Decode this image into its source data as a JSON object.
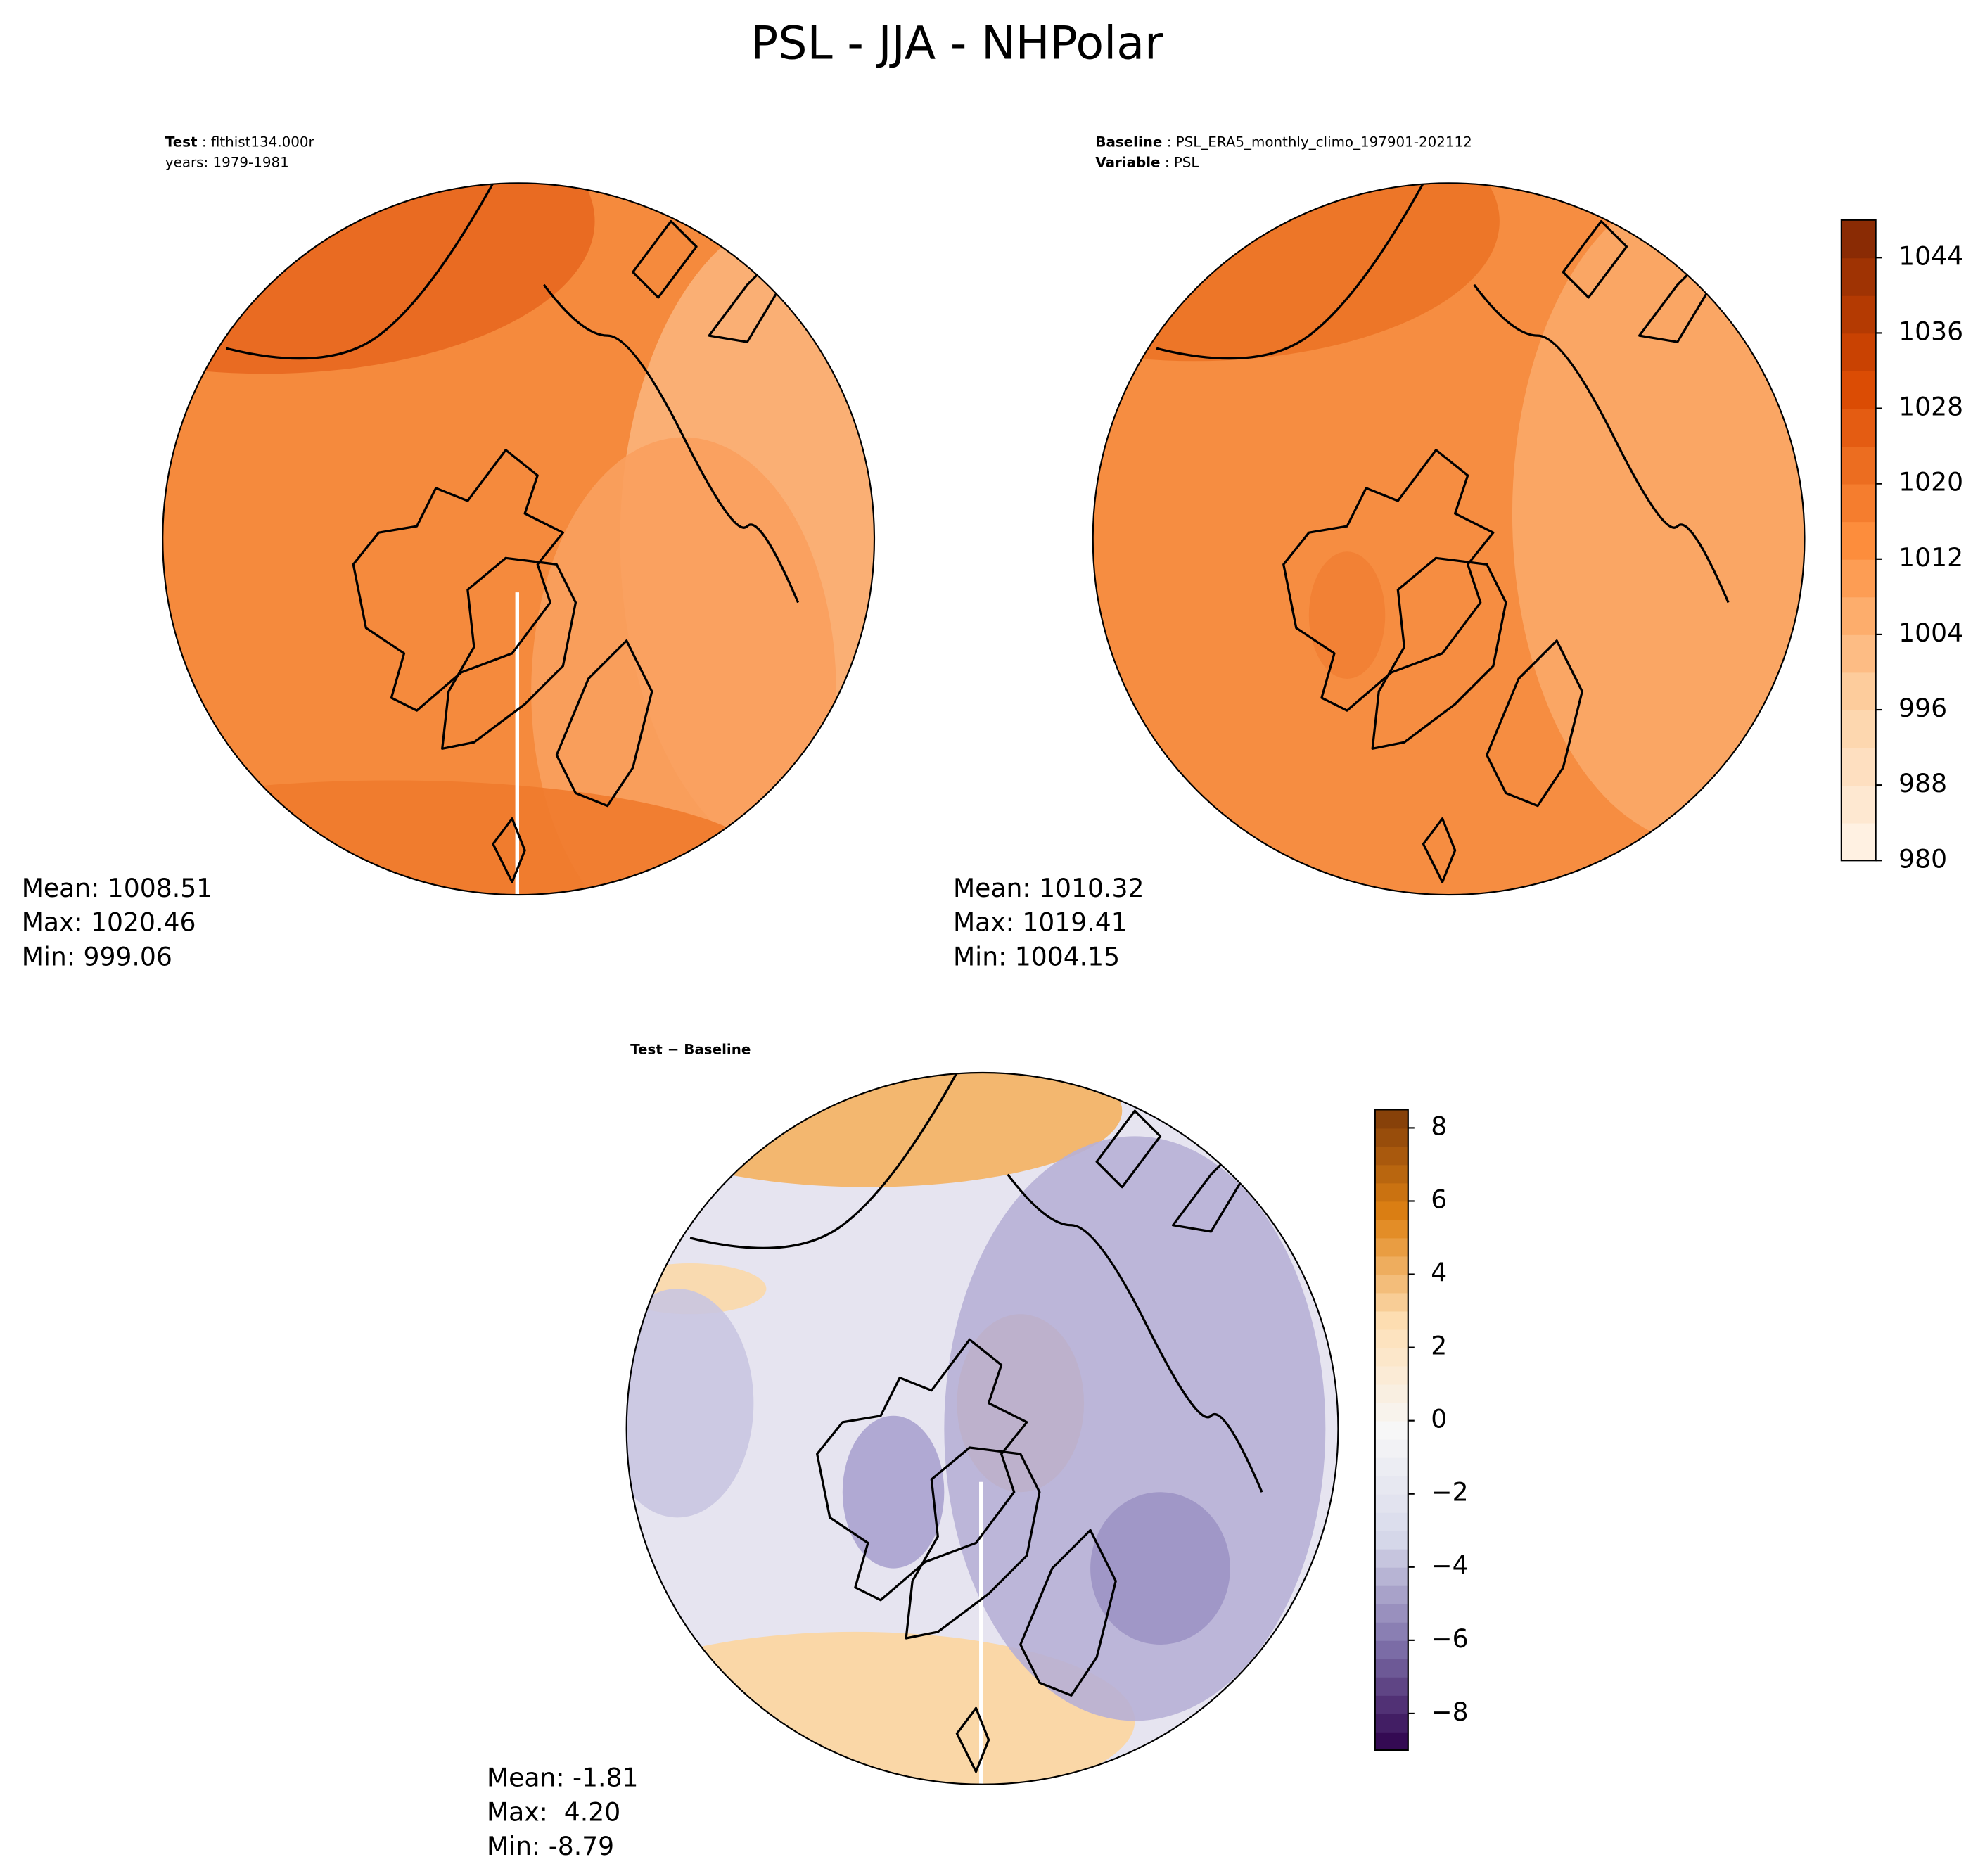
{
  "title": "PSL - JJA - NHPolar",
  "chart_data": [
    {
      "type": "polar-map",
      "header": [
        {
          "bold": "Test",
          "text": " : flthist134.000r"
        },
        {
          "text": "years: 1979-1981"
        }
      ],
      "stats": [
        "Mean: 1008.51",
        "Max: 1020.46",
        "Min: 999.06"
      ]
    },
    {
      "type": "polar-map",
      "header": [
        {
          "bold": "Baseline",
          "text": " : PSL_ERA5_monthly_climo_197901-202112"
        },
        {
          "bold": "Variable",
          "text": " : PSL"
        }
      ],
      "stats": [
        "Mean: 1010.32",
        "Max: 1019.41",
        "Min: 1004.15"
      ],
      "colorbar": {
        "cmap": "Oranges",
        "ylim": [
          980,
          1048
        ],
        "yticks": [
          980,
          988,
          996,
          1004,
          1012,
          1020,
          1028,
          1036,
          1044
        ]
      }
    },
    {
      "type": "polar-map",
      "header": [
        {
          "bold": "Test − Baseline"
        }
      ],
      "stats": [
        "Mean: -1.81",
        "Max:  4.20",
        "Min: -8.79"
      ],
      "colorbar": {
        "cmap": "PuOr_r",
        "ylim": [
          -9,
          8.5
        ],
        "yticks": [
          {
            "value": -8,
            "label": "−8"
          },
          {
            "value": -6,
            "label": "−6"
          },
          {
            "value": -4,
            "label": "−4"
          },
          {
            "value": -2,
            "label": "−2"
          },
          0,
          2,
          4,
          6,
          8
        ]
      }
    }
  ]
}
